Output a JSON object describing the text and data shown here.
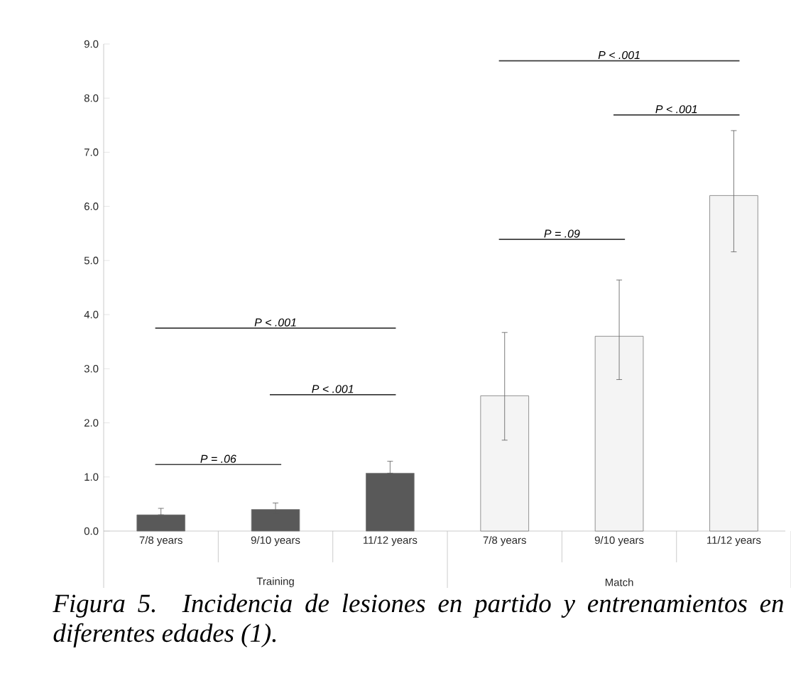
{
  "chart_data": {
    "type": "bar",
    "categories": [
      "7/8 years",
      "9/10 years",
      "11/12 years",
      "7/8 years",
      "9/10 years",
      "11/12 years"
    ],
    "values": [
      0.3,
      0.4,
      1.07,
      2.5,
      3.6,
      6.2
    ],
    "colors": [
      "#595959",
      "#595959",
      "#595959",
      "#f4f4f4",
      "#f4f4f4",
      "#f4f4f4"
    ],
    "errors": [
      [
        0.3,
        0.42
      ],
      [
        0.33,
        0.52
      ],
      [
        1.07,
        1.29
      ],
      [
        1.68,
        3.67
      ],
      [
        2.8,
        4.64
      ],
      [
        5.16,
        7.4
      ]
    ],
    "ylim": [
      0,
      9
    ],
    "yticks": [
      {
        "value": 0,
        "label": "0.0"
      },
      {
        "value": 1,
        "label": "1.0"
      },
      {
        "value": 2,
        "label": "2.0"
      },
      {
        "value": 3,
        "label": "3.0"
      },
      {
        "value": 4,
        "label": "4.0"
      },
      {
        "value": 5,
        "label": "5.0"
      },
      {
        "value": 6,
        "label": "6.0"
      },
      {
        "value": 7,
        "label": "7.0"
      },
      {
        "value": 8,
        "label": "8.0"
      },
      {
        "value": 9,
        "label": "9.0"
      }
    ],
    "grid": false,
    "annotations": [
      "P = .06",
      "P < .001",
      "P < .001",
      "P = .09",
      "P < .001",
      "P < .001",
      "Training",
      "Match",
      "Figura 5. Incidencia de lesiones en partido y entrenamientos en diferentes edades (1)."
    ]
  }
}
